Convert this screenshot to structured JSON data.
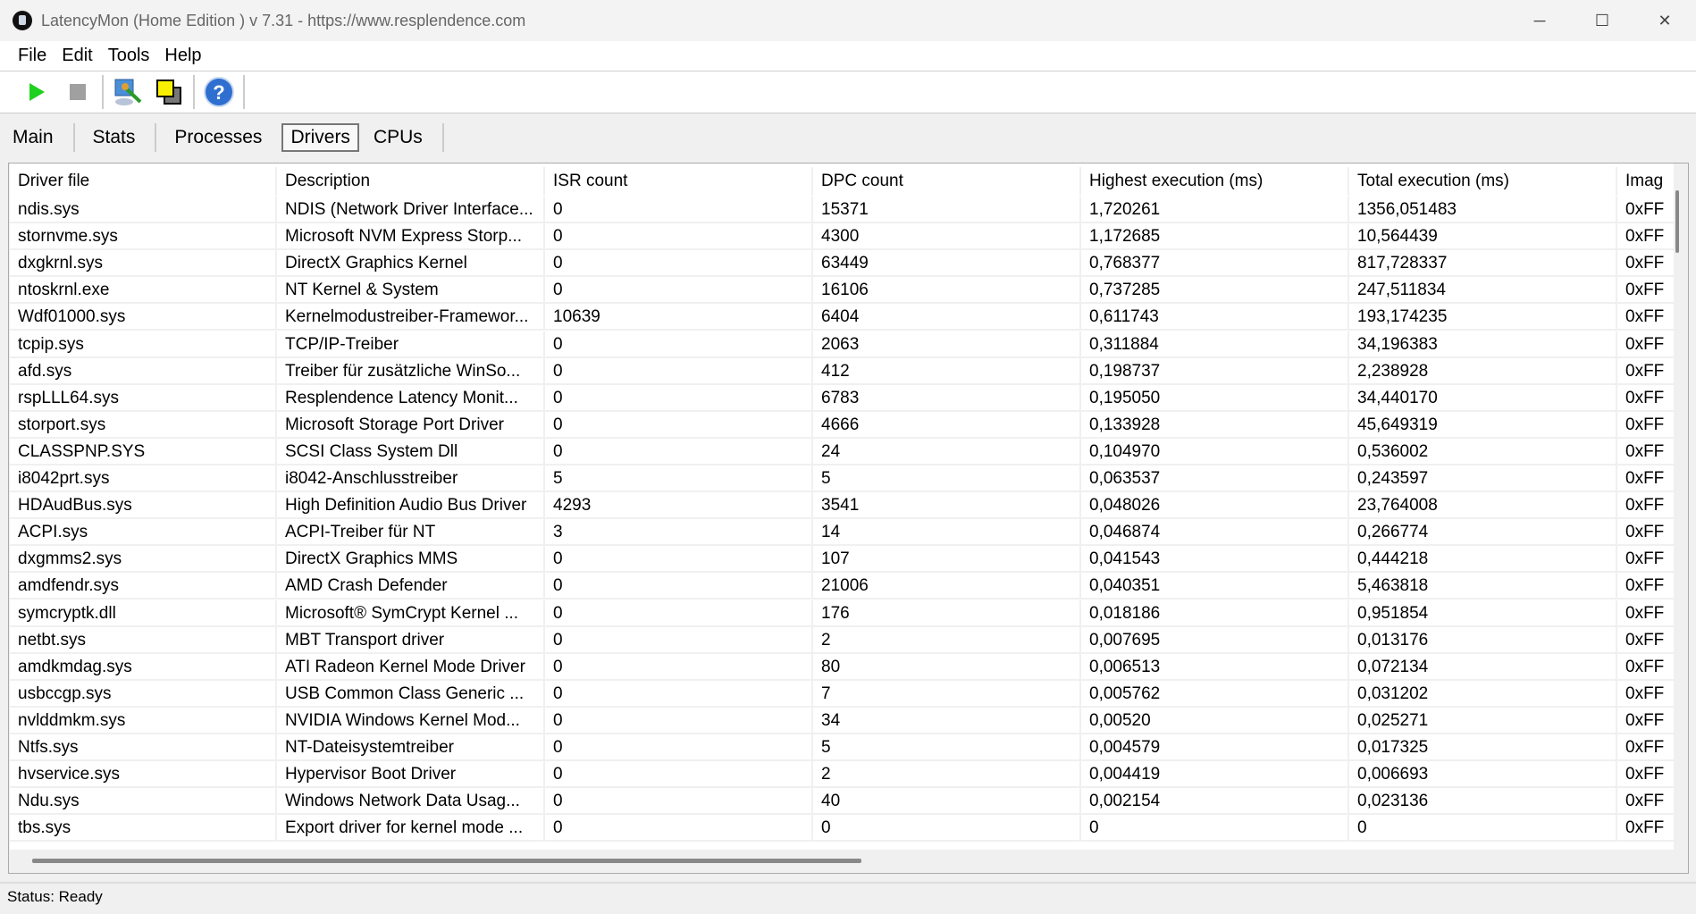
{
  "window": {
    "title": "LatencyMon  (Home Edition )  v 7.31 - https://www.resplendence.com",
    "minimize": "─",
    "maximize": "☐",
    "close": "✕"
  },
  "menu": [
    {
      "label": "File",
      "key": "F"
    },
    {
      "label": "Edit",
      "key": "E"
    },
    {
      "label": "Tools",
      "key": "T"
    },
    {
      "label": "Help",
      "key": "H"
    }
  ],
  "toolbar": {
    "icons": [
      "play-icon",
      "stop-icon",
      "analyze-icon",
      "windows-icon",
      "help-icon"
    ],
    "help_glyph": "?"
  },
  "tabs": [
    {
      "label": "Main"
    },
    {
      "label": "Stats"
    },
    {
      "label": "Processes"
    },
    {
      "label": "Drivers",
      "active": true
    },
    {
      "label": "CPUs"
    }
  ],
  "table": {
    "columns": [
      "Driver file",
      "Description",
      "ISR count",
      "DPC count",
      "Highest execution (ms)",
      "Total execution (ms)",
      "Imag"
    ],
    "rows": [
      [
        "ndis.sys",
        "NDIS (Network Driver Interface...",
        "0",
        "15371",
        "1,720261",
        "1356,051483",
        "0xFF"
      ],
      [
        "stornvme.sys",
        "Microsoft NVM Express Storp...",
        "0",
        "4300",
        "1,172685",
        "10,564439",
        "0xFF"
      ],
      [
        "dxgkrnl.sys",
        "DirectX Graphics Kernel",
        "0",
        "63449",
        "0,768377",
        "817,728337",
        "0xFF"
      ],
      [
        "ntoskrnl.exe",
        "NT Kernel & System",
        "0",
        "16106",
        "0,737285",
        "247,511834",
        "0xFF"
      ],
      [
        "Wdf01000.sys",
        "Kernelmodustreiber-Framewor...",
        "10639",
        "6404",
        "0,611743",
        "193,174235",
        "0xFF"
      ],
      [
        "tcpip.sys",
        "TCP/IP-Treiber",
        "0",
        "2063",
        "0,311884",
        "34,196383",
        "0xFF"
      ],
      [
        "afd.sys",
        "Treiber für zusätzliche WinSo...",
        "0",
        "412",
        "0,198737",
        "2,238928",
        "0xFF"
      ],
      [
        "rspLLL64.sys",
        "Resplendence Latency Monit...",
        "0",
        "6783",
        "0,195050",
        "34,440170",
        "0xFF"
      ],
      [
        "storport.sys",
        "Microsoft Storage Port Driver",
        "0",
        "4666",
        "0,133928",
        "45,649319",
        "0xFF"
      ],
      [
        "CLASSPNP.SYS",
        "SCSI Class System Dll",
        "0",
        "24",
        "0,104970",
        "0,536002",
        "0xFF"
      ],
      [
        "i8042prt.sys",
        "i8042-Anschlusstreiber",
        "5",
        "5",
        "0,063537",
        "0,243597",
        "0xFF"
      ],
      [
        "HDAudBus.sys",
        "High Definition Audio Bus Driver",
        "4293",
        "3541",
        "0,048026",
        "23,764008",
        "0xFF"
      ],
      [
        "ACPI.sys",
        "ACPI-Treiber für NT",
        "3",
        "14",
        "0,046874",
        "0,266774",
        "0xFF"
      ],
      [
        "dxgmms2.sys",
        "DirectX Graphics MMS",
        "0",
        "107",
        "0,041543",
        "0,444218",
        "0xFF"
      ],
      [
        "amdfendr.sys",
        "AMD Crash Defender",
        "0",
        "21006",
        "0,040351",
        "5,463818",
        "0xFF"
      ],
      [
        "symcryptk.dll",
        "Microsoft® SymCrypt Kernel ...",
        "0",
        "176",
        "0,018186",
        "0,951854",
        "0xFF"
      ],
      [
        "netbt.sys",
        "MBT Transport driver",
        "0",
        "2",
        "0,007695",
        "0,013176",
        "0xFF"
      ],
      [
        "amdkmdag.sys",
        "ATI Radeon Kernel Mode Driver",
        "0",
        "80",
        "0,006513",
        "0,072134",
        "0xFF"
      ],
      [
        "usbccgp.sys",
        "USB Common Class Generic ...",
        "0",
        "7",
        "0,005762",
        "0,031202",
        "0xFF"
      ],
      [
        "nvlddmkm.sys",
        "NVIDIA Windows Kernel Mod...",
        "0",
        "34",
        "0,00520",
        "0,025271",
        "0xFF"
      ],
      [
        "Ntfs.sys",
        "NT-Dateisystemtreiber",
        "0",
        "5",
        "0,004579",
        "0,017325",
        "0xFF"
      ],
      [
        "hvservice.sys",
        "Hypervisor Boot Driver",
        "0",
        "2",
        "0,004419",
        "0,006693",
        "0xFF"
      ],
      [
        "Ndu.sys",
        "Windows Network Data Usag...",
        "0",
        "40",
        "0,002154",
        "0,023136",
        "0xFF"
      ],
      [
        "tbs.sys",
        "Export driver for kernel mode ...",
        "0",
        "0",
        "0",
        "0",
        "0xFF"
      ]
    ]
  },
  "status": "Status: Ready"
}
